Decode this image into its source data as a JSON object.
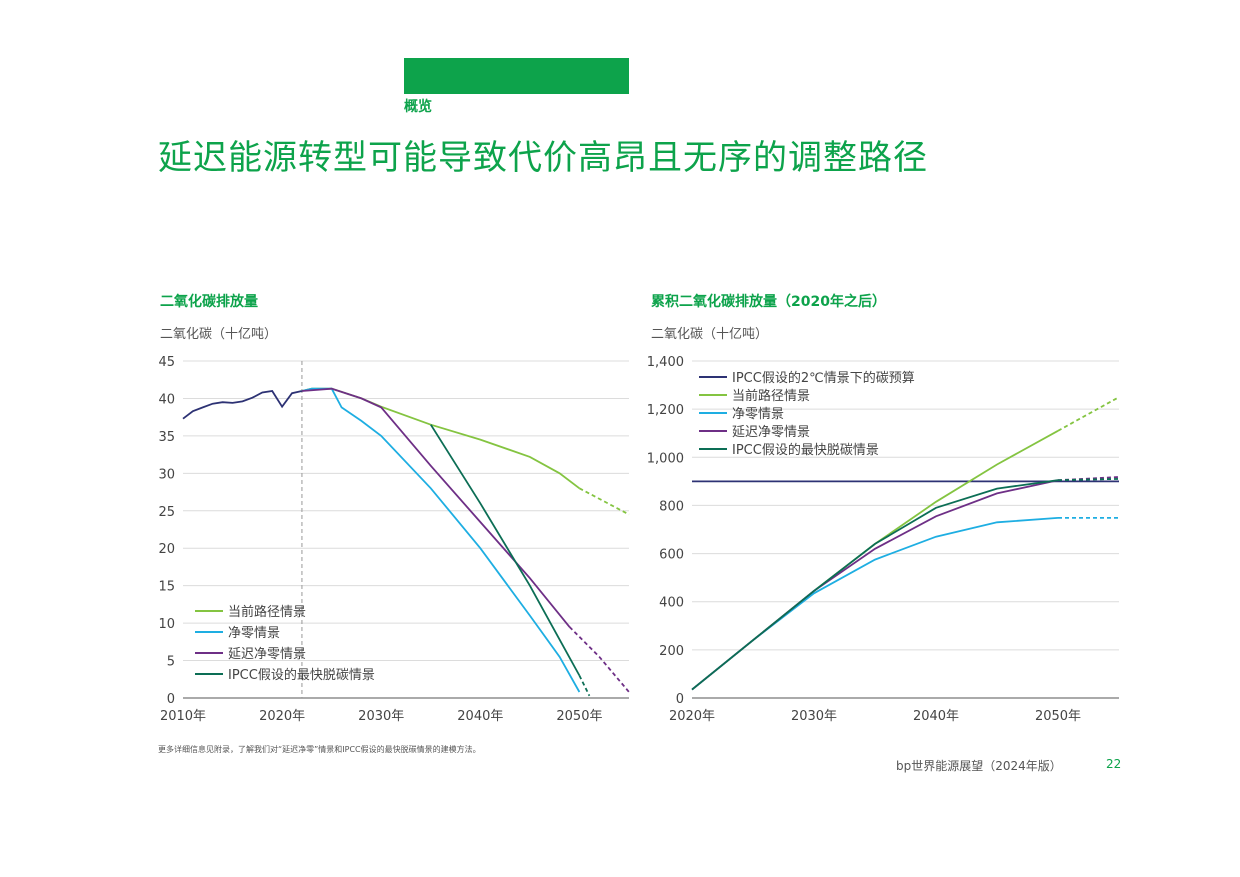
{
  "header": {
    "section_label": "概览",
    "title": "延迟能源转型可能导致代价高昂且无序的调整路径"
  },
  "colors": {
    "brand": "#0da34b",
    "current": "#84c441",
    "net_zero": "#1eaee2",
    "delayed": "#6e2f86",
    "ipcc_fast": "#0c6e55",
    "budget": "#2d3274",
    "history": "#2d3274"
  },
  "chart_data": [
    {
      "type": "line",
      "title": "二氧化碳排放量",
      "ylabel": "二氧化碳（十亿吨）",
      "ylim": [
        0,
        45
      ],
      "xlim": [
        2010,
        2055
      ],
      "yticks": [
        "0",
        "5",
        "10",
        "15",
        "20",
        "25",
        "30",
        "35",
        "40",
        "45"
      ],
      "xticks": [
        "2010年",
        "2020年",
        "2030年",
        "2040年",
        "2050年"
      ],
      "grid": true,
      "legend_position": "bottom-left",
      "history": [
        [
          2010,
          37.3
        ],
        [
          2011,
          38.3
        ],
        [
          2012,
          38.8
        ],
        [
          2013,
          39.3
        ],
        [
          2014,
          39.5
        ],
        [
          2015,
          39.4
        ],
        [
          2016,
          39.6
        ],
        [
          2017,
          40.1
        ],
        [
          2018,
          40.8
        ],
        [
          2019,
          41.0
        ],
        [
          2020,
          38.9
        ],
        [
          2021,
          40.7
        ],
        [
          2022,
          41.0
        ]
      ],
      "series": [
        {
          "name": "当前路径情景",
          "values": [
            [
              2022,
              41.0
            ],
            [
              2023,
              41.3
            ],
            [
              2024,
              41.3
            ],
            [
              2025,
              41.3
            ],
            [
              2028,
              40.0
            ],
            [
              2030,
              38.9
            ],
            [
              2035,
              36.5
            ],
            [
              2040,
              34.5
            ],
            [
              2045,
              32.2
            ],
            [
              2048,
              30.0
            ],
            [
              2050,
              28.0
            ]
          ],
          "projection": [
            [
              2050,
              28.0
            ],
            [
              2055,
              24.5
            ]
          ]
        },
        {
          "name": "净零情景",
          "values": [
            [
              2022,
              41.0
            ],
            [
              2023,
              41.3
            ],
            [
              2025,
              41.3
            ],
            [
              2026,
              38.8
            ],
            [
              2028,
              37.0
            ],
            [
              2030,
              35.0
            ],
            [
              2035,
              28.0
            ],
            [
              2040,
              20.0
            ],
            [
              2045,
              11.0
            ],
            [
              2048,
              5.5
            ],
            [
              2050,
              0.8
            ]
          ]
        },
        {
          "name": "延迟净零情景",
          "values": [
            [
              2022,
              41.0
            ],
            [
              2025,
              41.3
            ],
            [
              2028,
              40.0
            ],
            [
              2030,
              38.8
            ],
            [
              2035,
              31.0
            ],
            [
              2040,
              23.5
            ],
            [
              2045,
              16.0
            ],
            [
              2049,
              9.5
            ]
          ],
          "projection": [
            [
              2049,
              9.5
            ],
            [
              2052,
              5.5
            ],
            [
              2055,
              0.8
            ]
          ]
        },
        {
          "name": "IPCC假设的最快脱碳情景",
          "values": [
            [
              2035,
              36.5
            ],
            [
              2040,
              26.0
            ],
            [
              2045,
              15.0
            ],
            [
              2050,
              3.0
            ]
          ],
          "projection": [
            [
              2050,
              3.0
            ],
            [
              2051,
              0.3
            ]
          ]
        }
      ]
    },
    {
      "type": "line",
      "title": "累积二氧化碳排放量（2020年之后）",
      "ylabel": "二氧化碳（十亿吨）",
      "ylim": [
        0,
        1400
      ],
      "xlim": [
        2020,
        2055
      ],
      "yticks": [
        "0",
        "200",
        "400",
        "600",
        "800",
        "1,000",
        "1,200",
        "1,400"
      ],
      "xticks": [
        "2020年",
        "2030年",
        "2040年",
        "2050年"
      ],
      "grid": true,
      "legend_position": "top-left",
      "series": [
        {
          "name": "IPCC假设的2℃情景下的碳预算",
          "values": [
            [
              2020,
              900
            ],
            [
              2055,
              900
            ]
          ]
        },
        {
          "name": "当前路径情景",
          "values": [
            [
              2020,
              35
            ],
            [
              2025,
              240
            ],
            [
              2030,
              445
            ],
            [
              2035,
              640
            ],
            [
              2040,
              815
            ],
            [
              2045,
              970
            ],
            [
              2050,
              1110
            ]
          ],
          "projection": [
            [
              2050,
              1110
            ],
            [
              2055,
              1250
            ]
          ]
        },
        {
          "name": "净零情景",
          "values": [
            [
              2020,
              35
            ],
            [
              2025,
              240
            ],
            [
              2030,
              435
            ],
            [
              2035,
              575
            ],
            [
              2040,
              670
            ],
            [
              2045,
              730
            ],
            [
              2050,
              748
            ]
          ],
          "projection": [
            [
              2050,
              748
            ],
            [
              2055,
              748
            ]
          ]
        },
        {
          "name": "延迟净零情景",
          "values": [
            [
              2020,
              35
            ],
            [
              2025,
              240
            ],
            [
              2030,
              445
            ],
            [
              2035,
              620
            ],
            [
              2040,
              755
            ],
            [
              2045,
              850
            ],
            [
              2050,
              905
            ]
          ],
          "projection": [
            [
              2050,
              905
            ],
            [
              2055,
              918
            ]
          ]
        },
        {
          "name": "IPCC假设的最快脱碳情景",
          "values": [
            [
              2020,
              35
            ],
            [
              2025,
              240
            ],
            [
              2030,
              445
            ],
            [
              2035,
              640
            ],
            [
              2040,
              790
            ],
            [
              2045,
              870
            ],
            [
              2050,
              905
            ]
          ],
          "projection": [
            [
              2050,
              905
            ],
            [
              2055,
              910
            ]
          ]
        }
      ]
    }
  ],
  "footnote": "更多详细信息见附录，了解我们对“延迟净零”情景和IPCC假设的最快脱碳情景的建模方法。",
  "footer": {
    "publication": "bp世界能源展望（2024年版）",
    "page_number": "22"
  }
}
